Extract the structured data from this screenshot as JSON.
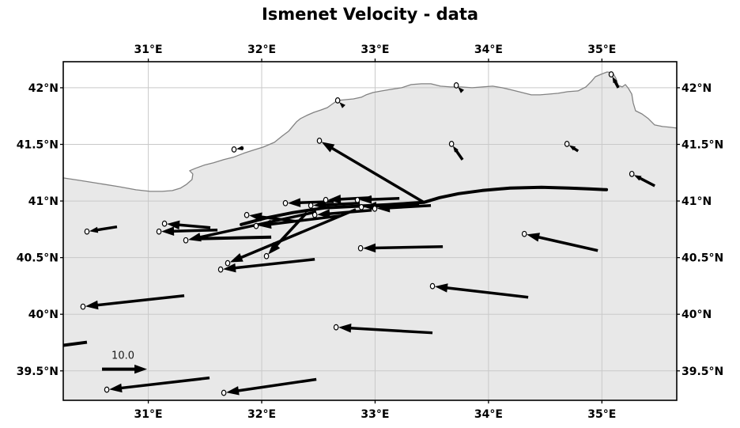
{
  "title": "Ismenet Velocity - data",
  "colors": {
    "background": "#ffffff",
    "sea": "#ffffff",
    "land": "#e8e8e8",
    "grid": "#c9c9c9",
    "coastline": "#828282",
    "vector": "#000000",
    "fault": "#000000",
    "axis_border": "#000000",
    "text": "#000000"
  },
  "chart_data": {
    "type": "vector_field",
    "title": "Ismenet Velocity - data",
    "xlabel": "",
    "ylabel": "",
    "xlim": [
      30.25,
      35.66
    ],
    "ylim": [
      39.24,
      42.23
    ],
    "grid": true,
    "x_ticks": [
      31,
      32,
      33,
      34,
      35
    ],
    "x_tick_labels": [
      "31°E",
      "32°E",
      "33°E",
      "34°E",
      "35°E"
    ],
    "y_ticks": [
      39.5,
      40,
      40.5,
      41,
      41.5,
      42
    ],
    "y_tick_labels": [
      "39.5°N",
      "40°N",
      "40.5°N",
      "41°N",
      "41.5°N",
      "42°N"
    ],
    "scale_arrow": {
      "label": "10.0",
      "start": [
        30.592,
        39.515
      ],
      "end": [
        30.989,
        39.515
      ]
    },
    "vectors": [
      {
        "tail": [
          30.724,
          40.772
        ],
        "head": [
          30.459,
          40.73
        ]
      },
      {
        "tail": [
          31.547,
          40.765
        ],
        "head": [
          31.143,
          40.8
        ]
      },
      {
        "tail": [
          31.61,
          40.744
        ],
        "head": [
          31.094,
          40.73
        ]
      },
      {
        "tail": [
          32.481,
          40.904
        ],
        "head": [
          31.331,
          40.653
        ]
      },
      {
        "tail": [
          32.83,
          40.925
        ],
        "head": [
          31.7,
          40.451
        ]
      },
      {
        "tail": [
          32.398,
          40.897
        ],
        "head": [
          32.042,
          40.513
        ]
      },
      {
        "tail": [
          32.468,
          40.485
        ],
        "head": [
          31.638,
          40.395
        ]
      },
      {
        "tail": [
          32.307,
          40.82
        ],
        "head": [
          31.868,
          40.876
        ]
      },
      {
        "tail": [
          32.691,
          40.869
        ],
        "head": [
          31.951,
          40.779
        ]
      },
      {
        "tail": [
          32.97,
          40.918
        ],
        "head": [
          32.468,
          40.877
        ]
      },
      {
        "tail": [
          32.635,
          40.995
        ],
        "head": [
          32.209,
          40.981
        ]
      },
      {
        "tail": [
          32.865,
          40.981
        ],
        "head": [
          32.433,
          40.96
        ]
      },
      {
        "tail": [
          32.97,
          41.03
        ],
        "head": [
          32.565,
          41.009
        ]
      },
      {
        "tail": [
          33.214,
          41.023
        ],
        "head": [
          32.844,
          41.009
        ]
      },
      {
        "tail": [
          33.388,
          40.974
        ],
        "head": [
          32.879,
          40.946
        ]
      },
      {
        "tail": [
          33.492,
          40.96
        ],
        "head": [
          32.997,
          40.932
        ]
      },
      {
        "tail": [
          33.43,
          40.988
        ],
        "head": [
          32.509,
          41.532
        ]
      },
      {
        "tail": [
          33.597,
          40.597
        ],
        "head": [
          32.872,
          40.583
        ]
      },
      {
        "tail": [
          34.964,
          40.562
        ],
        "head": [
          34.316,
          40.709
        ]
      },
      {
        "tail": [
          34.35,
          40.15
        ],
        "head": [
          33.506,
          40.248
        ]
      },
      {
        "tail": [
          33.506,
          39.836
        ],
        "head": [
          32.656,
          39.885
        ]
      },
      {
        "tail": [
          31.317,
          40.164
        ],
        "head": [
          30.424,
          40.067
        ]
      },
      {
        "tail": [
          31.54,
          39.438
        ],
        "head": [
          30.634,
          39.334
        ]
      },
      {
        "tail": [
          32.482,
          39.425
        ],
        "head": [
          31.666,
          39.306
        ]
      },
      {
        "tail": [
          35.466,
          41.134
        ],
        "head": [
          35.264,
          41.239
        ]
      },
      {
        "tail": [
          35.145,
          42.0
        ],
        "head": [
          35.082,
          42.118
        ]
      },
      {
        "tail": [
          34.79,
          41.441
        ],
        "head": [
          34.692,
          41.504
        ]
      },
      {
        "tail": [
          33.771,
          41.365
        ],
        "head": [
          33.674,
          41.504
        ]
      },
      {
        "tail": [
          33.765,
          41.972
        ],
        "head": [
          33.716,
          42.021
        ]
      },
      {
        "tail": [
          32.719,
          41.839
        ],
        "head": [
          32.67,
          41.888
        ]
      },
      {
        "tail": [
          31.84,
          41.469
        ],
        "head": [
          31.756,
          41.455
        ]
      }
    ],
    "extra_segments": [
      [
        [
          30.25,
          39.725
        ],
        [
          30.459,
          39.753
        ]
      ],
      [
        [
          32.084,
          40.681
        ],
        [
          31.435,
          40.667
        ]
      ]
    ],
    "coastline": [
      [
        30.25,
        41.204
      ],
      [
        30.389,
        41.183
      ],
      [
        30.564,
        41.155
      ],
      [
        30.738,
        41.127
      ],
      [
        30.891,
        41.099
      ],
      [
        31.017,
        41.085
      ],
      [
        31.121,
        41.085
      ],
      [
        31.212,
        41.092
      ],
      [
        31.282,
        41.113
      ],
      [
        31.338,
        41.148
      ],
      [
        31.386,
        41.19
      ],
      [
        31.393,
        41.239
      ],
      [
        31.365,
        41.267
      ],
      [
        31.414,
        41.288
      ],
      [
        31.491,
        41.316
      ],
      [
        31.575,
        41.337
      ],
      [
        31.665,
        41.365
      ],
      [
        31.749,
        41.386
      ],
      [
        31.84,
        41.421
      ],
      [
        31.923,
        41.448
      ],
      [
        32.014,
        41.476
      ],
      [
        32.112,
        41.518
      ],
      [
        32.181,
        41.574
      ],
      [
        32.237,
        41.616
      ],
      [
        32.272,
        41.658
      ],
      [
        32.307,
        41.7
      ],
      [
        32.342,
        41.728
      ],
      [
        32.397,
        41.756
      ],
      [
        32.46,
        41.783
      ],
      [
        32.523,
        41.804
      ],
      [
        32.579,
        41.825
      ],
      [
        32.627,
        41.86
      ],
      [
        32.669,
        41.888
      ],
      [
        32.739,
        41.895
      ],
      [
        32.809,
        41.902
      ],
      [
        32.878,
        41.916
      ],
      [
        32.92,
        41.937
      ],
      [
        32.983,
        41.958
      ],
      [
        33.06,
        41.972
      ],
      [
        33.143,
        41.986
      ],
      [
        33.234,
        42.0
      ],
      [
        33.318,
        42.028
      ],
      [
        33.408,
        42.035
      ],
      [
        33.492,
        42.035
      ],
      [
        33.576,
        42.014
      ],
      [
        33.666,
        42.007
      ],
      [
        33.757,
        42.007
      ],
      [
        33.855,
        42.0
      ],
      [
        33.945,
        42.007
      ],
      [
        34.036,
        42.014
      ],
      [
        34.12,
        42.0
      ],
      [
        34.21,
        41.979
      ],
      [
        34.294,
        41.958
      ],
      [
        34.377,
        41.937
      ],
      [
        34.454,
        41.937
      ],
      [
        34.538,
        41.944
      ],
      [
        34.614,
        41.951
      ],
      [
        34.698,
        41.965
      ],
      [
        34.789,
        41.972
      ],
      [
        34.858,
        42.007
      ],
      [
        34.907,
        42.056
      ],
      [
        34.942,
        42.097
      ],
      [
        34.991,
        42.118
      ],
      [
        35.046,
        42.139
      ],
      [
        35.095,
        42.132
      ],
      [
        35.123,
        42.083
      ],
      [
        35.144,
        42.021
      ],
      [
        35.179,
        42.007
      ],
      [
        35.207,
        42.028
      ],
      [
        35.235,
        41.993
      ],
      [
        35.263,
        41.944
      ],
      [
        35.276,
        41.867
      ],
      [
        35.297,
        41.797
      ],
      [
        35.353,
        41.769
      ],
      [
        35.409,
        41.728
      ],
      [
        35.465,
        41.672
      ],
      [
        35.534,
        41.658
      ],
      [
        35.604,
        41.651
      ],
      [
        35.66,
        41.644
      ]
    ],
    "fault_trace": [
      [
        31.819,
        40.792
      ],
      [
        32.028,
        40.848
      ],
      [
        32.272,
        40.897
      ],
      [
        32.551,
        40.939
      ],
      [
        32.83,
        40.953
      ],
      [
        33.109,
        40.967
      ],
      [
        33.318,
        40.981
      ],
      [
        33.43,
        40.988
      ],
      [
        33.569,
        41.03
      ],
      [
        33.736,
        41.065
      ],
      [
        33.945,
        41.093
      ],
      [
        34.189,
        41.114
      ],
      [
        34.468,
        41.121
      ],
      [
        34.712,
        41.114
      ],
      [
        34.887,
        41.107
      ],
      [
        35.04,
        41.1
      ]
    ]
  }
}
